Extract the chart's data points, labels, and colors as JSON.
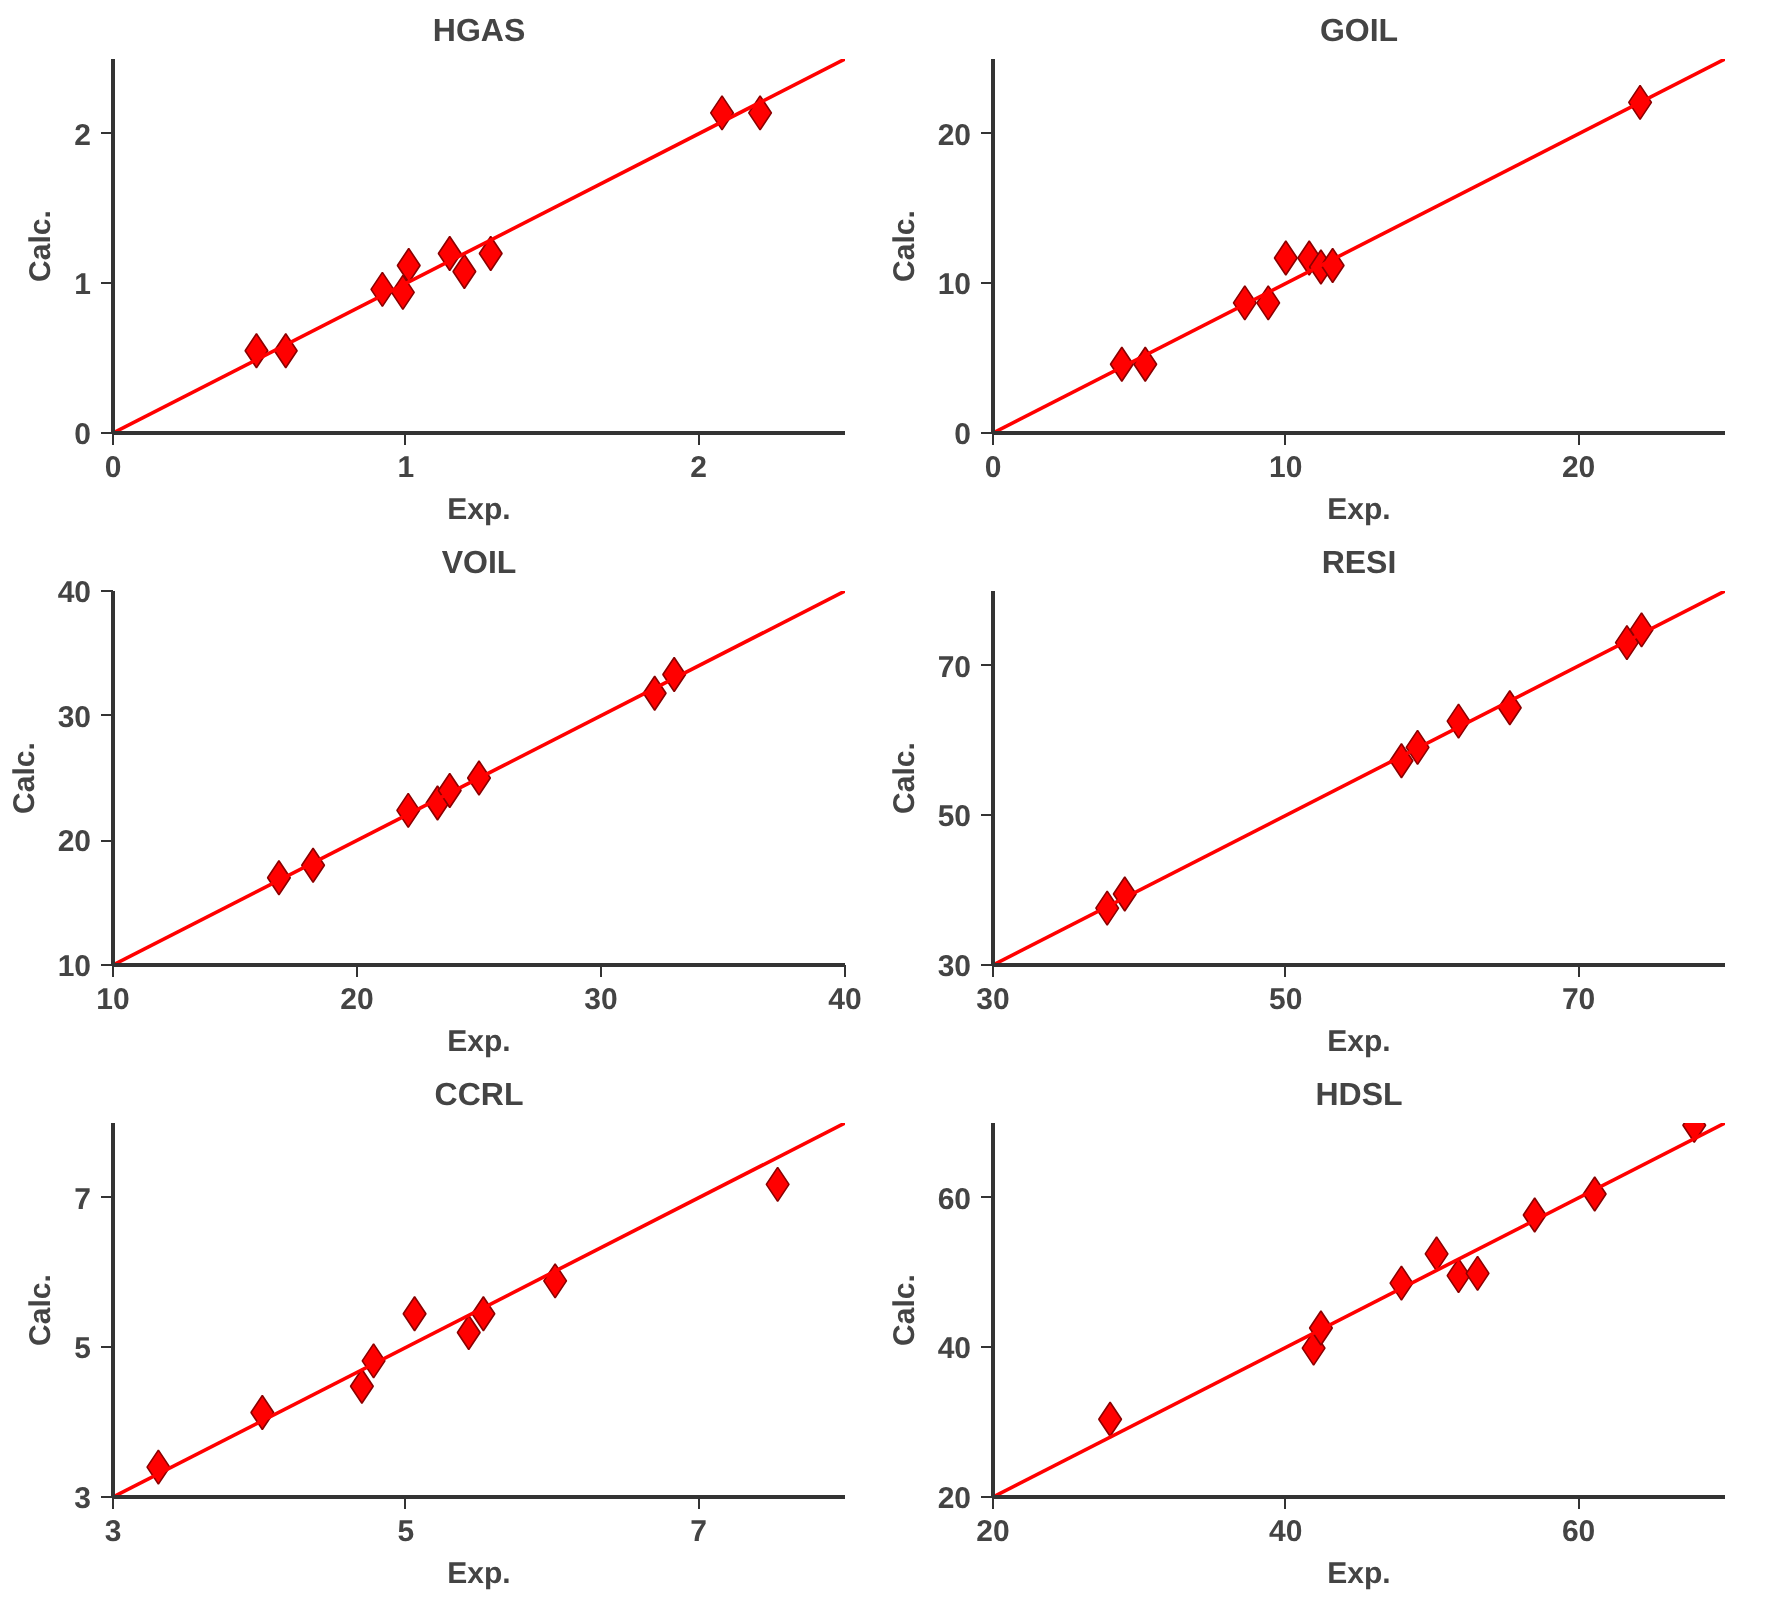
{
  "chart_data": [
    {
      "type": "scatter",
      "title": "HGAS",
      "xlabel": "Exp.",
      "ylabel": "Calc.",
      "xlim": [
        0,
        2.5
      ],
      "ylim": [
        0,
        2.5
      ],
      "xticks": [
        0,
        1,
        2
      ],
      "yticks": [
        0,
        1,
        2
      ],
      "grid": false,
      "series": [
        {
          "color": "#ff0000",
          "marker": "diamond",
          "x": [
            0.49,
            0.59,
            0.92,
            0.99,
            1.01,
            1.15,
            1.2,
            1.29,
            2.08,
            2.21
          ],
          "values": [
            0.55,
            0.55,
            0.96,
            0.94,
            1.12,
            1.2,
            1.08,
            1.2,
            2.14,
            2.14
          ]
        },
        {
          "type": "line",
          "color": "#ff0000",
          "line_style": "solid",
          "marker": "none",
          "x": [
            0,
            2.5
          ],
          "values": [
            0,
            2.5
          ]
        }
      ]
    },
    {
      "type": "scatter",
      "title": "GOIL",
      "xlabel": "Exp.",
      "ylabel": "Calc.",
      "xlim": [
        0,
        25
      ],
      "ylim": [
        0,
        25
      ],
      "xticks": [
        0,
        10,
        20
      ],
      "yticks": [
        0,
        10,
        20
      ],
      "grid": false,
      "series": [
        {
          "color": "#ff0000",
          "marker": "diamond",
          "x": [
            4.4,
            5.2,
            8.6,
            9.4,
            10.0,
            10.8,
            11.2,
            11.6,
            22.1
          ],
          "values": [
            4.6,
            4.6,
            8.7,
            8.7,
            11.7,
            11.7,
            11.1,
            11.2,
            22.1
          ]
        },
        {
          "type": "line",
          "color": "#ff0000",
          "line_style": "solid",
          "marker": "none",
          "x": [
            0,
            25
          ],
          "values": [
            0,
            25
          ]
        }
      ]
    },
    {
      "type": "scatter",
      "title": "VOIL",
      "xlabel": "Exp.",
      "ylabel": "Calc.",
      "xlim": [
        10,
        40
      ],
      "ylim": [
        10,
        40
      ],
      "xticks": [
        10,
        20,
        30,
        40
      ],
      "yticks": [
        10,
        20,
        30,
        40
      ],
      "grid": false,
      "series": [
        {
          "color": "#ff0000",
          "marker": "diamond",
          "x": [
            16.8,
            18.2,
            22.1,
            23.3,
            23.8,
            24.8,
            25.0,
            32.2,
            33.0
          ],
          "values": [
            17.0,
            18.0,
            22.4,
            23.0,
            24.0,
            null,
            25.0,
            31.8,
            33.3
          ]
        },
        {
          "type": "line",
          "color": "#ff0000",
          "line_style": "solid",
          "marker": "none",
          "x": [
            10,
            40
          ],
          "values": [
            10,
            40
          ]
        }
      ]
    },
    {
      "type": "scatter",
      "title": "RESI",
      "xlabel": "Exp.",
      "ylabel": "Calc.",
      "xlim": [
        30,
        80
      ],
      "ylim": [
        30,
        80
      ],
      "xticks": [
        30,
        50,
        70
      ],
      "yticks": [
        30,
        50,
        70
      ],
      "grid": false,
      "series": [
        {
          "color": "#ff0000",
          "marker": "diamond",
          "x": [
            37.8,
            39.0,
            57.9,
            59.0,
            61.8,
            65.3,
            73.3,
            74.3
          ],
          "values": [
            37.6,
            39.5,
            57.3,
            59.1,
            62.6,
            64.4,
            73.1,
            74.8
          ]
        },
        {
          "type": "line",
          "color": "#ff0000",
          "line_style": "solid",
          "marker": "none",
          "x": [
            30,
            80
          ],
          "values": [
            30,
            80
          ]
        }
      ]
    },
    {
      "type": "scatter",
      "title": "CCRL",
      "xlabel": "Exp.",
      "ylabel": "Calc.",
      "xlim": [
        3,
        8
      ],
      "ylim": [
        3,
        8
      ],
      "xticks": [
        3,
        5,
        7
      ],
      "yticks": [
        3,
        5,
        7
      ],
      "grid": false,
      "series": [
        {
          "color": "#ff0000",
          "marker": "diamond",
          "x": [
            3.31,
            4.02,
            4.7,
            4.78,
            5.06,
            5.43,
            5.53,
            6.02,
            7.54
          ],
          "values": [
            3.4,
            4.13,
            4.48,
            4.82,
            5.45,
            5.2,
            5.45,
            5.89,
            7.18
          ]
        },
        {
          "type": "line",
          "color": "#ff0000",
          "line_style": "solid",
          "marker": "none",
          "x": [
            3,
            8
          ],
          "values": [
            3,
            8
          ]
        }
      ]
    },
    {
      "type": "scatter",
      "title": "HDSL",
      "xlabel": "Exp.",
      "ylabel": "Calc.",
      "xlim": [
        20,
        70
      ],
      "ylim": [
        20,
        70
      ],
      "xticks": [
        20,
        40,
        60
      ],
      "yticks": [
        20,
        40,
        60
      ],
      "grid": false,
      "series": [
        {
          "color": "#ff0000",
          "marker": "diamond",
          "x": [
            28.0,
            41.9,
            42.4,
            47.9,
            50.3,
            51.8,
            53.1,
            57.0,
            61.1,
            67.9
          ],
          "values": [
            30.4,
            39.9,
            42.6,
            48.6,
            52.5,
            49.6,
            49.9,
            57.7,
            60.5,
            69.7
          ]
        },
        {
          "type": "line",
          "color": "#ff0000",
          "line_style": "solid",
          "marker": "none",
          "x": [
            20,
            70
          ],
          "values": [
            20,
            70
          ]
        }
      ]
    }
  ]
}
